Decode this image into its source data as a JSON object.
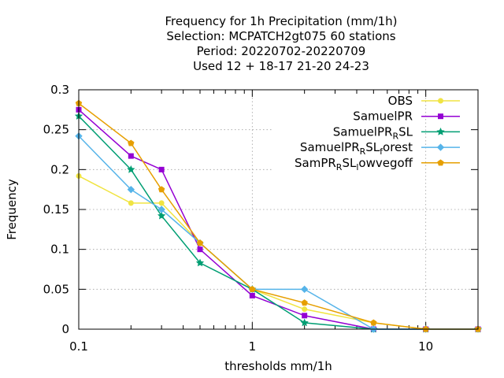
{
  "chart_data": {
    "type": "line",
    "title_lines": [
      "Frequency  for 1h Precipitation (mm/1h)",
      "Selection: MCPATCH2gt075     60 stations",
      "Period: 20220702-20220709",
      "Used  12 + 18-17 21-20 24-23"
    ],
    "xlabel": "thresholds mm/1h",
    "ylabel": "Frequency",
    "x_scale": "log",
    "xlim": [
      0.1,
      20
    ],
    "ylim": [
      0,
      0.3
    ],
    "x_ticks": [
      {
        "value": 0.1,
        "label": "0.1"
      },
      {
        "value": 1,
        "label": "1"
      },
      {
        "value": 10,
        "label": "10"
      }
    ],
    "y_ticks": [
      {
        "value": 0,
        "label": "0"
      },
      {
        "value": 0.05,
        "label": "0.05"
      },
      {
        "value": 0.1,
        "label": "0.1"
      },
      {
        "value": 0.15,
        "label": "0.15"
      },
      {
        "value": 0.2,
        "label": "0.2"
      },
      {
        "value": 0.25,
        "label": "0.25"
      },
      {
        "value": 0.3,
        "label": "0.3"
      }
    ],
    "grid": true,
    "legend_position": "top-right",
    "x": [
      0.1,
      0.2,
      0.3,
      0.5,
      1,
      2,
      5,
      10,
      20
    ],
    "series": [
      {
        "name": "OBS",
        "color": "#f0e442",
        "marker": "circle",
        "values": [
          0.192,
          0.158,
          0.158,
          0.108,
          0.05,
          0.025,
          0.008,
          0.0,
          0.0
        ]
      },
      {
        "name": "SamuelPR",
        "color": "#9400d3",
        "marker": "square",
        "values": [
          0.275,
          0.217,
          0.2,
          0.1,
          0.042,
          0.017,
          0.0,
          0.0,
          0.0
        ]
      },
      {
        "name": "SamuelPR_RSL",
        "label_base": "SamuelPR",
        "label_sub": "R",
        "label_tail": "SL",
        "color": "#009e73",
        "marker": "star",
        "values": [
          0.267,
          0.2,
          0.142,
          0.083,
          0.05,
          0.008,
          0.0,
          0.0,
          0.0
        ]
      },
      {
        "name": "SamuelPR_RSL_forest",
        "label_base": "SamuelPR",
        "label_sub": "R",
        "label_tail": "SL",
        "label_sub2": "f",
        "label_tail2": "orest",
        "color": "#56b4e9",
        "marker": "diamond",
        "values": [
          0.242,
          0.175,
          0.15,
          0.108,
          0.05,
          0.05,
          0.0,
          0.0,
          0.0
        ]
      },
      {
        "name": "SamPR_RSL_lowvegoff",
        "label_base": "SamPR",
        "label_sub": "R",
        "label_tail": "SL",
        "label_sub2": "l",
        "label_tail2": "owvegoff",
        "color": "#e69f00",
        "marker": "pentagon",
        "values": [
          0.283,
          0.233,
          0.175,
          0.108,
          0.05,
          0.033,
          0.008,
          0.0,
          0.0
        ]
      }
    ]
  }
}
